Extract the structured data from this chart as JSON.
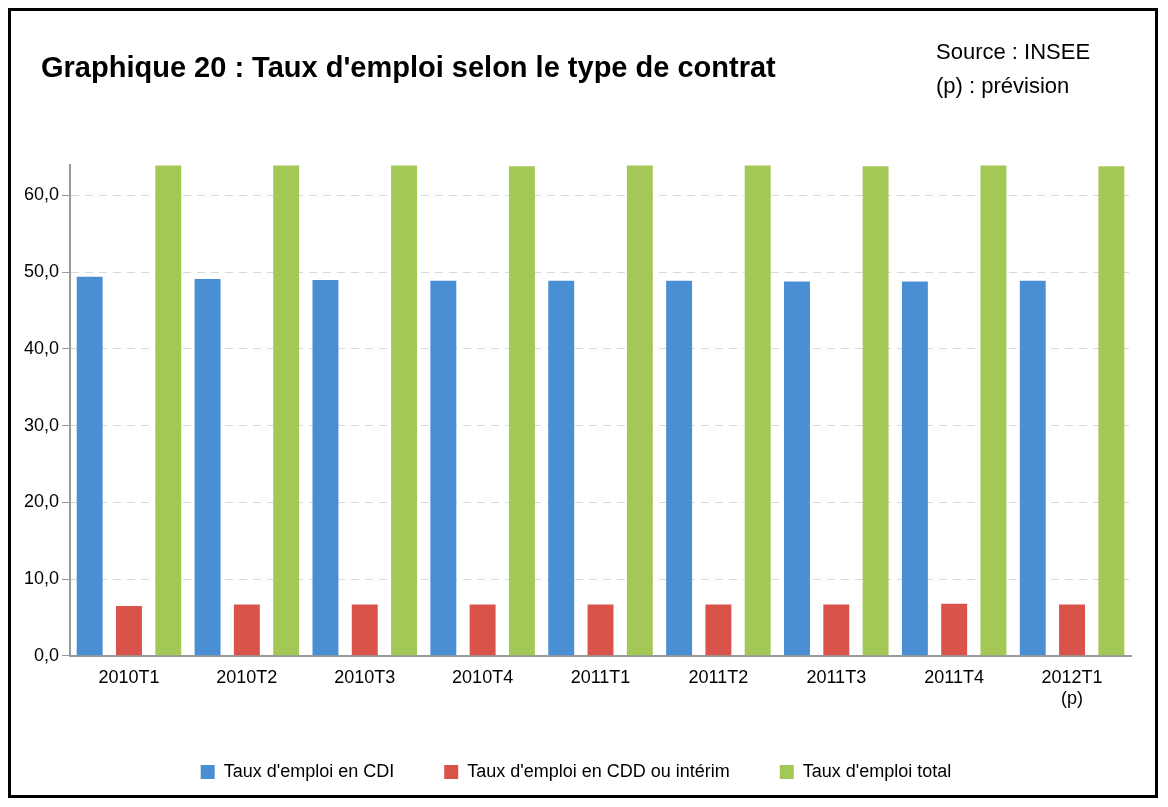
{
  "chart_data": {
    "type": "bar",
    "title": "Graphique 20 : Taux d'emploi selon le type de contrat",
    "annotations": [
      "Source : INSEE",
      "(p) : prévision"
    ],
    "categories": [
      "2010T1",
      "2010T2",
      "2010T3",
      "2010T4",
      "2011T1",
      "2011T2",
      "2011T3",
      "2011T4",
      "2012T1 (p)"
    ],
    "series": [
      {
        "name": "Taux d'emploi en CDI",
        "color": "#4a8fd4",
        "values": [
          49.4,
          49.1,
          49.0,
          48.9,
          48.9,
          48.9,
          48.8,
          48.8,
          48.9
        ]
      },
      {
        "name": "Taux d'emploi en CDD ou intérim",
        "color": "#d9534a",
        "values": [
          6.5,
          6.7,
          6.7,
          6.7,
          6.7,
          6.7,
          6.7,
          6.8,
          6.7
        ]
      },
      {
        "name": "Taux d'emploi total",
        "color": "#a4c855",
        "values": [
          63.9,
          63.9,
          63.9,
          63.8,
          63.9,
          63.9,
          63.8,
          63.9,
          63.8
        ]
      }
    ],
    "ylim": [
      0,
      64
    ],
    "yticks": [
      {
        "value": 0,
        "label": "0,0"
      },
      {
        "value": 10,
        "label": "10,0"
      },
      {
        "value": 20,
        "label": "20,0"
      },
      {
        "value": 30,
        "label": "30,0"
      },
      {
        "value": 40,
        "label": "40,0"
      },
      {
        "value": 50,
        "label": "50,0"
      },
      {
        "value": 60,
        "label": "60,0"
      }
    ],
    "grid": "y",
    "legend": "bottom"
  }
}
